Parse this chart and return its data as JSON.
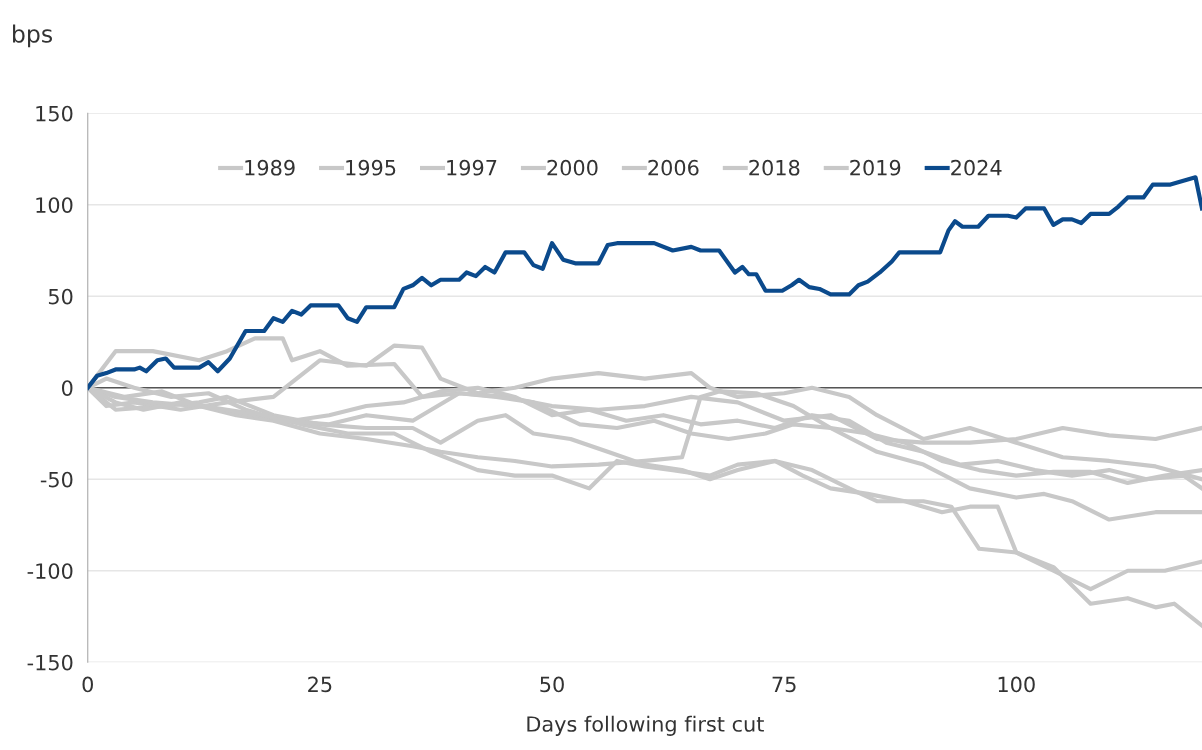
{
  "chart_data": {
    "type": "line",
    "ylabel": "bps",
    "xlabel": "Days following first cut",
    "xlim": [
      0,
      120
    ],
    "ylim": [
      -150,
      150
    ],
    "xticks": [
      0,
      25,
      50,
      75,
      100
    ],
    "yticks": [
      -150,
      -100,
      -50,
      0,
      50,
      100,
      150
    ],
    "grid": "y",
    "legend": "top",
    "marker": "none",
    "line_style": "solid",
    "ref_lines": [
      {
        "axis": "y",
        "value": 0,
        "label": null,
        "color": "#555555"
      }
    ],
    "series": [
      {
        "name": "1989",
        "color": "#c8c8c8",
        "x": [
          0,
          3,
          7,
          12,
          15,
          18,
          21,
          22,
          25,
          28,
          33,
          36,
          40,
          45,
          50,
          55,
          60,
          65,
          70,
          75,
          80,
          85,
          90,
          95,
          100,
          105,
          110,
          115,
          120
        ],
        "values": [
          0,
          20,
          20,
          15,
          20,
          27,
          27,
          15,
          20,
          12,
          13,
          -5,
          -3,
          -5,
          -10,
          -12,
          -10,
          -5,
          -8,
          -18,
          -15,
          -28,
          -30,
          -30,
          -28,
          -22,
          -26,
          -28,
          -22
        ]
      },
      {
        "name": "1995",
        "color": "#c8c8c8",
        "x": [
          0,
          2,
          5,
          10,
          15,
          20,
          25,
          30,
          33,
          36,
          38,
          42,
          46,
          50,
          55,
          60,
          65,
          67,
          70,
          75,
          78,
          82,
          85,
          90,
          95,
          100,
          105,
          110,
          115,
          120
        ],
        "values": [
          0,
          -10,
          -8,
          -12,
          -8,
          -5,
          15,
          12,
          23,
          22,
          5,
          -3,
          0,
          5,
          8,
          5,
          8,
          0,
          -5,
          -3,
          0,
          -5,
          -15,
          -28,
          -22,
          -30,
          -38,
          -40,
          -43,
          -50
        ]
      },
      {
        "name": "1997",
        "color": "#c8c8c8",
        "x": [
          0,
          3,
          7,
          12,
          16,
          20,
          25,
          30,
          35,
          38,
          42,
          46,
          50,
          55,
          60,
          64,
          66,
          68,
          72,
          76,
          80,
          85,
          90,
          95,
          100,
          103,
          106,
          110,
          115,
          120
        ],
        "values": [
          0,
          -5,
          -8,
          -10,
          -15,
          -18,
          -25,
          -28,
          -32,
          -35,
          -38,
          -40,
          -43,
          -42,
          -40,
          -38,
          -5,
          -2,
          -3,
          -10,
          -22,
          -35,
          -42,
          -55,
          -60,
          -58,
          -62,
          -72,
          -68,
          -68
        ]
      },
      {
        "name": "2000",
        "color": "#c8c8c8",
        "x": [
          0,
          3,
          8,
          12,
          15,
          20,
          25,
          30,
          35,
          38,
          42,
          45,
          48,
          52,
          56,
          60,
          64,
          67,
          70,
          74,
          78,
          82,
          85,
          90,
          93,
          96,
          100,
          104,
          108,
          112,
          116,
          120
        ],
        "values": [
          0,
          -12,
          -10,
          -8,
          -5,
          -15,
          -20,
          -22,
          -22,
          -30,
          -18,
          -15,
          -25,
          -28,
          -35,
          -42,
          -45,
          -50,
          -45,
          -40,
          -45,
          -55,
          -62,
          -62,
          -65,
          -88,
          -90,
          -100,
          -110,
          -100,
          -100,
          -95
        ]
      },
      {
        "name": "2006",
        "color": "#c8c8c8",
        "x": [
          0,
          4,
          8,
          12,
          18,
          22,
          26,
          30,
          34,
          38,
          42,
          46,
          50,
          54,
          58,
          62,
          66,
          70,
          74,
          78,
          82,
          86,
          90,
          94,
          98,
          102,
          106,
          110,
          114,
          118,
          120
        ],
        "values": [
          0,
          -5,
          -2,
          -10,
          -15,
          -18,
          -15,
          -10,
          -8,
          -2,
          0,
          -5,
          -15,
          -12,
          -18,
          -15,
          -20,
          -18,
          -22,
          -15,
          -18,
          -30,
          -35,
          -42,
          -40,
          -45,
          -48,
          -45,
          -50,
          -48,
          -55
        ]
      },
      {
        "name": "2018",
        "color": "#c8c8c8",
        "x": [
          0,
          3,
          6,
          10,
          15,
          19,
          23,
          28,
          33,
          37,
          42,
          46,
          50,
          54,
          57,
          60,
          63,
          67,
          70,
          74,
          77,
          80,
          84,
          88,
          92,
          95,
          98,
          100,
          104,
          108,
          112,
          115,
          117,
          120
        ],
        "values": [
          0,
          -8,
          -12,
          -8,
          -12,
          -15,
          -20,
          -25,
          -25,
          -35,
          -45,
          -48,
          -48,
          -55,
          -40,
          -43,
          -45,
          -48,
          -42,
          -40,
          -48,
          -55,
          -58,
          -62,
          -68,
          -65,
          -65,
          -90,
          -98,
          -118,
          -115,
          -120,
          -118,
          -130
        ]
      },
      {
        "name": "2019",
        "color": "#c8c8c8",
        "x": [
          0,
          2,
          5,
          9,
          13,
          17,
          21,
          26,
          30,
          35,
          40,
          44,
          48,
          53,
          57,
          61,
          65,
          69,
          73,
          76,
          80,
          84,
          88,
          92,
          96,
          100,
          104,
          108,
          112,
          116,
          120
        ],
        "values": [
          0,
          5,
          0,
          -5,
          -3,
          -12,
          -18,
          -20,
          -15,
          -18,
          -3,
          -5,
          -8,
          -20,
          -22,
          -18,
          -25,
          -28,
          -25,
          -20,
          -22,
          -25,
          -30,
          -40,
          -45,
          -48,
          -46,
          -46,
          -52,
          -48,
          -45
        ]
      },
      {
        "name": "2024",
        "color": "#0b4a8c",
        "x": [
          0,
          1,
          2,
          3,
          5,
          5.6,
          6.3,
          7.5,
          8.4,
          9.3,
          12,
          13,
          14,
          15.3,
          17,
          19,
          20,
          21,
          22,
          23,
          24,
          27,
          28,
          29,
          30,
          33,
          34,
          35,
          36,
          37,
          38,
          40,
          40.8,
          41.8,
          42.8,
          43.8,
          45,
          47,
          48,
          49,
          50,
          51.2,
          52.5,
          55,
          56,
          57,
          61,
          63,
          65,
          66,
          68,
          69.7,
          70.5,
          71.2,
          72,
          73,
          74.8,
          75.8,
          76.6,
          77.7,
          78.8,
          80,
          82,
          83,
          84,
          85.3,
          86.6,
          87.4,
          91.8,
          92.7,
          93.4,
          94.2,
          95.9,
          97,
          99.1,
          100,
          101,
          103,
          104,
          105,
          106,
          107,
          108,
          110,
          111,
          112,
          113.7,
          114.7,
          116.6,
          119.3,
          120
        ],
        "values": [
          0,
          6.5,
          8,
          10,
          10,
          11,
          9,
          15,
          16,
          11,
          11,
          14,
          9,
          16,
          31,
          31,
          38,
          36,
          42,
          40,
          45,
          45,
          38,
          36,
          44,
          44,
          54,
          56,
          60,
          56,
          59,
          59,
          63,
          61,
          66,
          63,
          74,
          74,
          67,
          65,
          79,
          70,
          68,
          68,
          78,
          79,
          79,
          75,
          77,
          75,
          75,
          63,
          66,
          62,
          62,
          53,
          53,
          56,
          59,
          55,
          54,
          51,
          51,
          56,
          58,
          63,
          69,
          74,
          74,
          86,
          91,
          88,
          88,
          94,
          94,
          93,
          98,
          98,
          89,
          92,
          92,
          90,
          95,
          95,
          99,
          104,
          104,
          111,
          111,
          115,
          98
        ]
      }
    ]
  }
}
